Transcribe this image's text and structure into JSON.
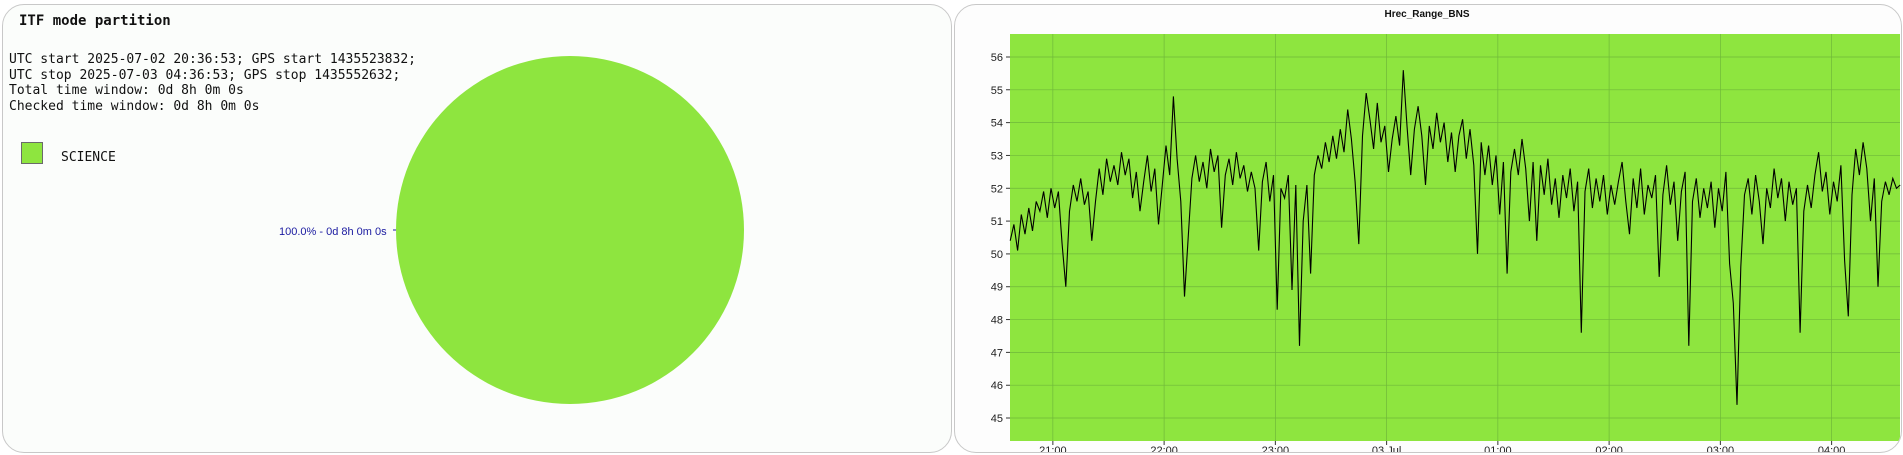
{
  "pie_panel": {
    "title": "ITF mode partition",
    "info_lines": [
      "UTC start 2025-07-02 20:36:53; GPS start 1435523832;",
      "UTC stop 2025-07-03 04:36:53; GPS stop 1435552632;",
      "Total time window: 0d 8h 0m 0s",
      "Checked time window: 0d 8h 0m 0s"
    ],
    "legend": [
      {
        "label": "SCIENCE",
        "color": "#8ee53f"
      }
    ],
    "slice_label": "100.0% - 0d 8h 0m 0s"
  },
  "line_panel": {
    "title": "Hrec_Range_BNS"
  },
  "colors": {
    "science": "#8ee53f",
    "plot_bg": "#8ee53f",
    "line": "#000000",
    "slice_label": "#1a1aa0"
  },
  "chart_data": [
    {
      "type": "pie",
      "title": "ITF mode partition",
      "slices": [
        {
          "name": "SCIENCE",
          "value": 100.0,
          "label": "100.0% - 0d 8h 0m 0s",
          "color": "#8ee53f"
        }
      ]
    },
    {
      "type": "line",
      "title": "Hrec_Range_BNS",
      "xlabel": "",
      "ylabel": "",
      "x_range": [
        "2025-07-02 20:36:53",
        "2025-07-03 04:36:53"
      ],
      "ylim": [
        44.3,
        56.7
      ],
      "yticks": [
        45,
        46,
        47,
        48,
        49,
        50,
        51,
        52,
        53,
        54,
        55,
        56
      ],
      "xticks": [
        {
          "time": "2025-07-02 21:00",
          "label": "21:00"
        },
        {
          "time": "2025-07-02 22:00",
          "label": "22:00"
        },
        {
          "time": "2025-07-02 23:00",
          "label": "23:00"
        },
        {
          "time": "2025-07-03 00:00",
          "label": "03 Jul"
        },
        {
          "time": "2025-07-03 01:00",
          "label": "01:00"
        },
        {
          "time": "2025-07-03 02:00",
          "label": "02:00"
        },
        {
          "time": "2025-07-03 03:00",
          "label": "03:00"
        },
        {
          "time": "2025-07-03 04:00",
          "label": "04:00"
        }
      ],
      "grid": true,
      "series": [
        {
          "color": "#000000",
          "points": [
            [
              "20:37",
              50.4
            ],
            [
              "20:39",
              50.9
            ],
            [
              "20:41",
              50.1
            ],
            [
              "20:43",
              51.2
            ],
            [
              "20:45",
              50.6
            ],
            [
              "20:47",
              51.4
            ],
            [
              "20:49",
              50.7
            ],
            [
              "20:51",
              51.6
            ],
            [
              "20:53",
              51.3
            ],
            [
              "20:55",
              51.9
            ],
            [
              "20:57",
              51.1
            ],
            [
              "20:59",
              52.0
            ],
            [
              "21:01",
              51.4
            ],
            [
              "21:03",
              51.9
            ],
            [
              "21:05",
              50.3
            ],
            [
              "21:07",
              49.0
            ],
            [
              "21:09",
              51.3
            ],
            [
              "21:11",
              52.1
            ],
            [
              "21:13",
              51.6
            ],
            [
              "21:15",
              52.3
            ],
            [
              "21:17",
              51.5
            ],
            [
              "21:19",
              51.9
            ],
            [
              "21:21",
              50.4
            ],
            [
              "21:23",
              51.6
            ],
            [
              "21:25",
              52.6
            ],
            [
              "21:27",
              51.8
            ],
            [
              "21:29",
              52.9
            ],
            [
              "21:31",
              52.2
            ],
            [
              "21:33",
              52.7
            ],
            [
              "21:35",
              52.1
            ],
            [
              "21:37",
              53.1
            ],
            [
              "21:39",
              52.4
            ],
            [
              "21:41",
              52.9
            ],
            [
              "21:43",
              51.7
            ],
            [
              "21:45",
              52.5
            ],
            [
              "21:47",
              51.3
            ],
            [
              "21:49",
              52.2
            ],
            [
              "21:51",
              53.0
            ],
            [
              "21:53",
              51.9
            ],
            [
              "21:55",
              52.6
            ],
            [
              "21:57",
              50.9
            ],
            [
              "21:59",
              52.1
            ],
            [
              "22:01",
              53.3
            ],
            [
              "22:03",
              52.4
            ],
            [
              "22:05",
              54.8
            ],
            [
              "22:07",
              52.9
            ],
            [
              "22:09",
              51.6
            ],
            [
              "22:11",
              48.7
            ],
            [
              "22:13",
              50.5
            ],
            [
              "22:15",
              52.3
            ],
            [
              "22:17",
              53.0
            ],
            [
              "22:19",
              52.2
            ],
            [
              "22:21",
              52.8
            ],
            [
              "22:23",
              52.0
            ],
            [
              "22:25",
              53.2
            ],
            [
              "22:27",
              52.5
            ],
            [
              "22:29",
              53.0
            ],
            [
              "22:31",
              50.8
            ],
            [
              "22:33",
              52.4
            ],
            [
              "22:35",
              52.9
            ],
            [
              "22:37",
              52.1
            ],
            [
              "22:39",
              53.1
            ],
            [
              "22:41",
              52.3
            ],
            [
              "22:43",
              52.7
            ],
            [
              "22:45",
              51.9
            ],
            [
              "22:47",
              52.5
            ],
            [
              "22:49",
              52.0
            ],
            [
              "22:51",
              50.1
            ],
            [
              "22:53",
              52.2
            ],
            [
              "22:55",
              52.8
            ],
            [
              "22:57",
              51.6
            ],
            [
              "22:59",
              52.4
            ],
            [
              "23:01",
              48.3
            ],
            [
              "23:03",
              52.0
            ],
            [
              "23:05",
              51.7
            ],
            [
              "23:07",
              52.4
            ],
            [
              "23:09",
              48.9
            ],
            [
              "23:11",
              52.1
            ],
            [
              "23:13",
              47.2
            ],
            [
              "23:15",
              51.0
            ],
            [
              "23:17",
              52.1
            ],
            [
              "23:19",
              49.4
            ],
            [
              "23:21",
              52.4
            ],
            [
              "23:23",
              53.0
            ],
            [
              "23:25",
              52.6
            ],
            [
              "23:27",
              53.4
            ],
            [
              "23:29",
              52.8
            ],
            [
              "23:31",
              53.6
            ],
            [
              "23:33",
              52.9
            ],
            [
              "23:35",
              53.8
            ],
            [
              "23:37",
              53.1
            ],
            [
              "23:39",
              54.4
            ],
            [
              "23:41",
              53.5
            ],
            [
              "23:43",
              52.2
            ],
            [
              "23:45",
              50.3
            ],
            [
              "23:47",
              53.6
            ],
            [
              "23:49",
              54.9
            ],
            [
              "23:51",
              54.1
            ],
            [
              "23:53",
              53.2
            ],
            [
              "23:55",
              54.6
            ],
            [
              "23:57",
              53.4
            ],
            [
              "23:59",
              53.9
            ],
            [
              "00:01",
              52.5
            ],
            [
              "00:03",
              53.5
            ],
            [
              "00:05",
              54.2
            ],
            [
              "00:07",
              53.3
            ],
            [
              "00:09",
              55.6
            ],
            [
              "00:11",
              53.9
            ],
            [
              "00:13",
              52.4
            ],
            [
              "00:15",
              53.8
            ],
            [
              "00:17",
              54.5
            ],
            [
              "00:19",
              53.6
            ],
            [
              "00:21",
              52.1
            ],
            [
              "00:23",
              53.9
            ],
            [
              "00:25",
              53.2
            ],
            [
              "00:27",
              54.3
            ],
            [
              "00:29",
              53.4
            ],
            [
              "00:31",
              54.0
            ],
            [
              "00:33",
              52.8
            ],
            [
              "00:35",
              53.7
            ],
            [
              "00:37",
              52.5
            ],
            [
              "00:39",
              53.6
            ],
            [
              "00:41",
              54.1
            ],
            [
              "00:43",
              52.9
            ],
            [
              "00:45",
              53.8
            ],
            [
              "00:47",
              52.7
            ],
            [
              "00:49",
              50.0
            ],
            [
              "00:51",
              53.4
            ],
            [
              "00:53",
              52.4
            ],
            [
              "00:55",
              53.3
            ],
            [
              "00:57",
              52.1
            ],
            [
              "00:59",
              53.0
            ],
            [
              "01:01",
              51.2
            ],
            [
              "01:03",
              52.8
            ],
            [
              "01:05",
              49.4
            ],
            [
              "01:07",
              52.5
            ],
            [
              "01:09",
              53.2
            ],
            [
              "01:11",
              52.4
            ],
            [
              "01:13",
              53.5
            ],
            [
              "01:15",
              52.6
            ],
            [
              "01:17",
              51.0
            ],
            [
              "01:19",
              52.8
            ],
            [
              "01:21",
              50.4
            ],
            [
              "01:23",
              52.7
            ],
            [
              "01:25",
              51.8
            ],
            [
              "01:27",
              52.9
            ],
            [
              "01:29",
              51.5
            ],
            [
              "01:31",
              52.3
            ],
            [
              "01:33",
              51.1
            ],
            [
              "01:35",
              52.4
            ],
            [
              "01:37",
              51.7
            ],
            [
              "01:39",
              52.6
            ],
            [
              "01:41",
              51.3
            ],
            [
              "01:43",
              52.2
            ],
            [
              "01:45",
              47.6
            ],
            [
              "01:47",
              51.9
            ],
            [
              "01:49",
              52.6
            ],
            [
              "01:51",
              51.4
            ],
            [
              "01:53",
              52.3
            ],
            [
              "01:55",
              51.6
            ],
            [
              "01:57",
              52.4
            ],
            [
              "01:59",
              51.2
            ],
            [
              "02:01",
              52.1
            ],
            [
              "02:03",
              51.5
            ],
            [
              "02:05",
              52.2
            ],
            [
              "02:07",
              52.8
            ],
            [
              "02:09",
              51.6
            ],
            [
              "02:11",
              50.6
            ],
            [
              "02:13",
              52.3
            ],
            [
              "02:15",
              51.4
            ],
            [
              "02:17",
              52.6
            ],
            [
              "02:19",
              51.2
            ],
            [
              "02:21",
              52.1
            ],
            [
              "02:23",
              51.7
            ],
            [
              "02:25",
              52.4
            ],
            [
              "02:27",
              49.3
            ],
            [
              "02:29",
              51.8
            ],
            [
              "02:31",
              52.7
            ],
            [
              "02:33",
              51.5
            ],
            [
              "02:35",
              52.2
            ],
            [
              "02:37",
              50.4
            ],
            [
              "02:39",
              51.9
            ],
            [
              "02:41",
              52.5
            ],
            [
              "02:43",
              47.2
            ],
            [
              "02:45",
              51.6
            ],
            [
              "02:47",
              52.3
            ],
            [
              "02:49",
              51.1
            ],
            [
              "02:51",
              52.0
            ],
            [
              "02:53",
              51.4
            ],
            [
              "02:55",
              52.2
            ],
            [
              "02:57",
              50.8
            ],
            [
              "02:59",
              52.0
            ],
            [
              "03:01",
              51.3
            ],
            [
              "03:03",
              52.5
            ],
            [
              "03:05",
              49.7
            ],
            [
              "03:07",
              48.5
            ],
            [
              "03:09",
              45.4
            ],
            [
              "03:11",
              49.6
            ],
            [
              "03:13",
              51.8
            ],
            [
              "03:15",
              52.3
            ],
            [
              "03:17",
              51.2
            ],
            [
              "03:19",
              52.4
            ],
            [
              "03:21",
              51.6
            ],
            [
              "03:23",
              50.3
            ],
            [
              "03:25",
              52.0
            ],
            [
              "03:27",
              51.4
            ],
            [
              "03:29",
              52.6
            ],
            [
              "03:31",
              51.7
            ],
            [
              "03:33",
              52.3
            ],
            [
              "03:35",
              51.0
            ],
            [
              "03:37",
              52.2
            ],
            [
              "03:39",
              51.5
            ],
            [
              "03:41",
              52.0
            ],
            [
              "03:43",
              47.6
            ],
            [
              "03:45",
              51.3
            ],
            [
              "03:47",
              52.1
            ],
            [
              "03:49",
              51.4
            ],
            [
              "03:51",
              52.4
            ],
            [
              "03:53",
              53.1
            ],
            [
              "03:55",
              51.9
            ],
            [
              "03:57",
              52.5
            ],
            [
              "03:59",
              51.2
            ],
            [
              "04:01",
              52.2
            ],
            [
              "04:03",
              51.6
            ],
            [
              "04:05",
              52.7
            ],
            [
              "04:07",
              49.8
            ],
            [
              "04:09",
              48.1
            ],
            [
              "04:11",
              51.8
            ],
            [
              "04:13",
              53.2
            ],
            [
              "04:15",
              52.4
            ],
            [
              "04:17",
              53.4
            ],
            [
              "04:19",
              52.6
            ],
            [
              "04:21",
              51.0
            ],
            [
              "04:23",
              52.3
            ],
            [
              "04:25",
              49.0
            ],
            [
              "04:27",
              51.6
            ],
            [
              "04:29",
              52.2
            ],
            [
              "04:31",
              51.8
            ],
            [
              "04:33",
              52.3
            ],
            [
              "04:35",
              52.0
            ],
            [
              "04:37",
              52.1
            ]
          ]
        }
      ]
    }
  ]
}
